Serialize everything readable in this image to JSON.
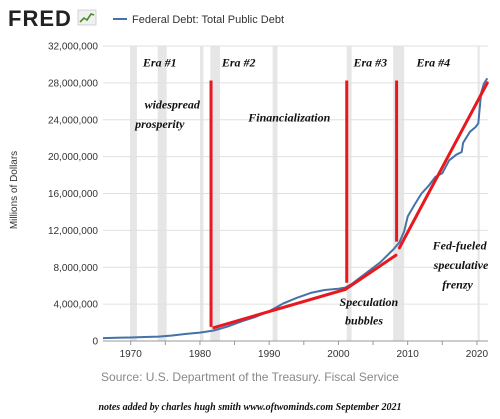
{
  "logo": {
    "text": "FRED",
    "icon": "fred-chart-icon"
  },
  "legend": {
    "label": "Federal Debt: Total Public Debt"
  },
  "source": "Source: U.S. Department of the Treasury. Fiscal Service",
  "footer": "notes added by charles hugh smith    www.oftwominds.com  September 2021",
  "colors": {
    "series": "#4572a7",
    "annotation": "#e8181e",
    "recession": "#e6e6e6",
    "grid": "#e0e0e0"
  },
  "chart_data": {
    "type": "line",
    "title": "",
    "xlabel": "",
    "ylabel": "Millions of Dollars",
    "xlim": [
      1966,
      2021.6
    ],
    "ylim": [
      0,
      32000000
    ],
    "x_ticks": [
      1970,
      1975,
      1980,
      1985,
      1990,
      1995,
      2000,
      2005,
      2010,
      2015,
      2020
    ],
    "x_tick_labels": [
      "1970",
      "",
      "1980",
      "",
      "1990",
      "",
      "2000",
      "",
      "2010",
      "",
      "2020"
    ],
    "y_ticks": [
      0,
      4000000,
      8000000,
      12000000,
      16000000,
      20000000,
      24000000,
      28000000,
      32000000
    ],
    "y_tick_labels": [
      "0",
      "4,000,000",
      "8,000,000",
      "12,000,000",
      "16,000,000",
      "20,000,000",
      "24,000,000",
      "28,000,000",
      "32,000,000"
    ],
    "grid": true,
    "recessions": [
      [
        1969.9,
        1970.9
      ],
      [
        1973.9,
        1975.2
      ],
      [
        1980.0,
        1980.5
      ],
      [
        1981.5,
        1982.9
      ],
      [
        1990.5,
        1991.2
      ],
      [
        2001.2,
        2001.9
      ],
      [
        2007.9,
        2009.5
      ],
      [
        2020.1,
        2020.4
      ]
    ],
    "series": [
      {
        "name": "Federal Debt: Total Public Debt",
        "x": [
          1966,
          1968,
          1970,
          1972,
          1974,
          1976,
          1978,
          1980,
          1982,
          1984,
          1986,
          1988,
          1990,
          1992,
          1994,
          1996,
          1998,
          2000,
          2001,
          2002,
          2004,
          2006,
          2008,
          2008.8,
          2009.5,
          2010,
          2011,
          2012,
          2013,
          2014,
          2015,
          2016,
          2017,
          2017.8,
          2018,
          2019,
          2019.8,
          2020.2,
          2020.6,
          2021,
          2021.5
        ],
        "y": [
          320000,
          350000,
          380000,
          430000,
          480000,
          600000,
          770000,
          910000,
          1140000,
          1570000,
          2130000,
          2600000,
          3230000,
          4060000,
          4690000,
          5220000,
          5530000,
          5670000,
          5800000,
          6230000,
          7380000,
          8500000,
          9990000,
          10700000,
          11900000,
          13500000,
          14800000,
          16000000,
          16800000,
          17800000,
          18200000,
          19600000,
          20200000,
          20500000,
          21500000,
          22700000,
          23200000,
          23600000,
          26900000,
          27900000,
          28500000
        ]
      }
    ],
    "trend_lines": [
      {
        "x": [
          1982,
          2001
        ],
        "y": [
          1450000,
          5600000
        ]
      },
      {
        "x": [
          2001,
          2008.3
        ],
        "y": [
          5600000,
          9300000
        ]
      },
      {
        "x": [
          2008.8,
          2021.5
        ],
        "y": [
          10100000,
          28000000
        ]
      }
    ],
    "era_dividers": [
      1981.6,
      2001.2,
      2008.4
    ],
    "era_labels": [
      {
        "text": "Era #1",
        "x": 1974.2,
        "y": 29800000
      },
      {
        "text": "Era #2",
        "x": 1985.6,
        "y": 29800000
      },
      {
        "text": "Era #3",
        "x": 2004.6,
        "y": 29800000
      },
      {
        "text": "Era #4",
        "x": 2013.7,
        "y": 29800000
      }
    ],
    "annotations": [
      {
        "text": "widespread",
        "x": 1976.0,
        "y": 25200000
      },
      {
        "text": "prosperity",
        "x": 1974.2,
        "y": 23100000
      },
      {
        "text": "Financialization",
        "x": 1992.9,
        "y": 23800000
      },
      {
        "text": "Fed-fueled",
        "x": 2017.5,
        "y": 9900000
      },
      {
        "text": "speculative",
        "x": 2017.7,
        "y": 7800000
      },
      {
        "text": "frenzy",
        "x": 2017.2,
        "y": 5700000
      },
      {
        "text": "Speculation",
        "x": 2004.4,
        "y": 3800000
      },
      {
        "text": "bubbles",
        "x": 2003.7,
        "y": 1800000
      }
    ]
  }
}
